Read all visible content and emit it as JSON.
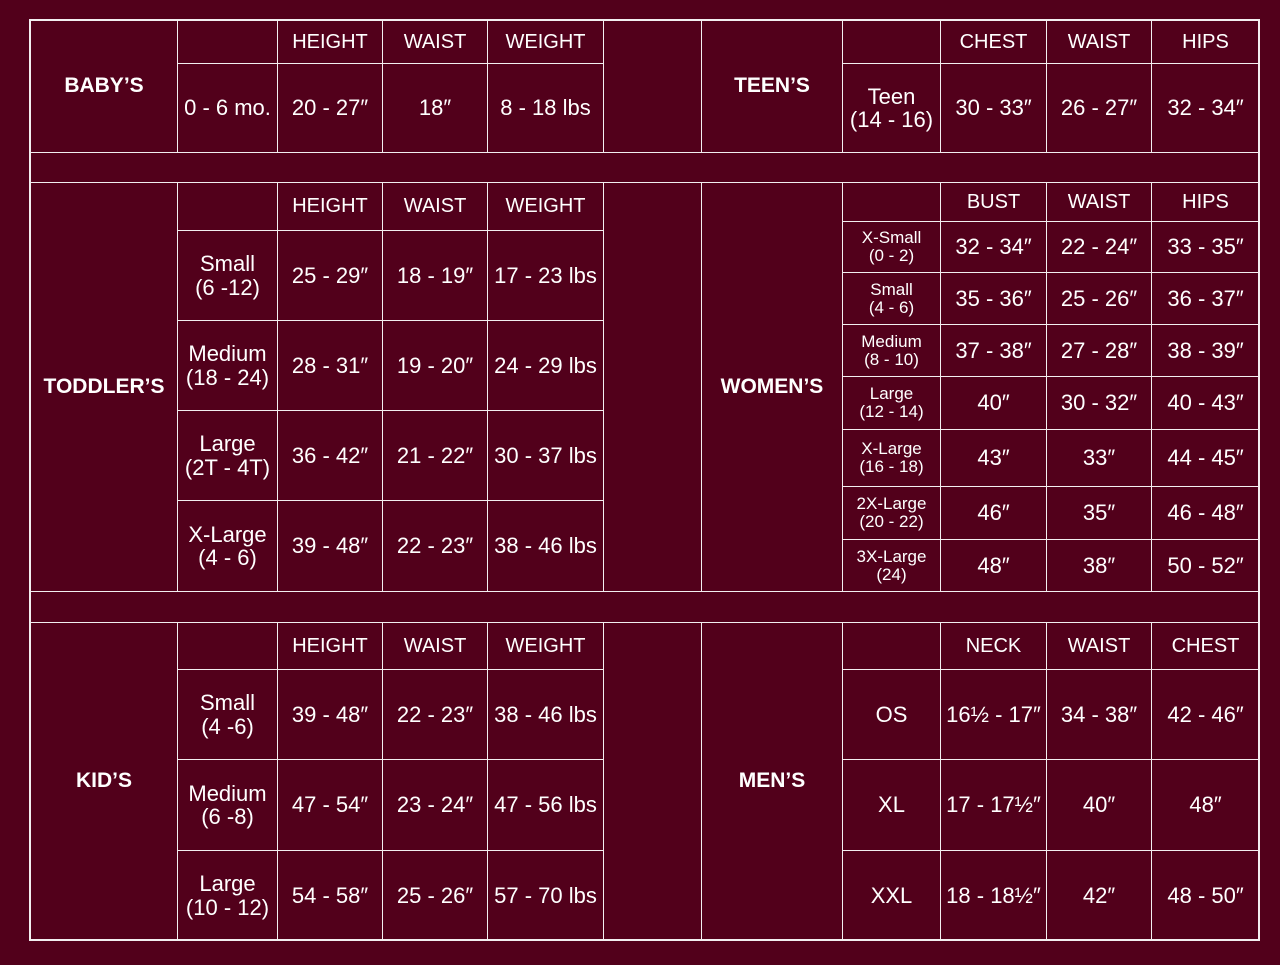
{
  "colors": {
    "background": "#52001b",
    "lines": "#f3eef0",
    "text": "#ffffff"
  },
  "sections": [
    {
      "left": {
        "label": "BABY’S",
        "headers": [
          "HEIGHT",
          "WAIST",
          "WEIGHT"
        ],
        "rows": [
          {
            "size": "0 - 6 mo.",
            "values": [
              "20 - 27″",
              "18″",
              "8 - 18 lbs"
            ]
          }
        ]
      },
      "right": {
        "label": "TEEN’S",
        "headers": [
          "CHEST",
          "WAIST",
          "HIPS"
        ],
        "rows": [
          {
            "size": "Teen\n(14 - 16)",
            "values": [
              "30 - 33″",
              "26 - 27″",
              "32 - 34″"
            ]
          }
        ]
      }
    },
    {
      "left": {
        "label": "TODDLER’S",
        "headers": [
          "HEIGHT",
          "WAIST",
          "WEIGHT"
        ],
        "rows": [
          {
            "size": "Small\n(6 -12)",
            "values": [
              "25 - 29″",
              "18 - 19″",
              "17 - 23 lbs"
            ]
          },
          {
            "size": "Medium\n(18 - 24)",
            "values": [
              "28 - 31″",
              "19 - 20″",
              "24 - 29 lbs"
            ]
          },
          {
            "size": "Large\n(2T - 4T)",
            "values": [
              "36 - 42″",
              "21 - 22″",
              "30 - 37 lbs"
            ]
          },
          {
            "size": "X-Large\n(4 - 6)",
            "values": [
              "39 - 48″",
              "22 - 23″",
              "38 - 46 lbs"
            ]
          }
        ]
      },
      "right": {
        "label": "WOMEN’S",
        "headers": [
          "BUST",
          "WAIST",
          "HIPS"
        ],
        "rows": [
          {
            "size": "X-Small\n(0 - 2)",
            "values": [
              "32 - 34″",
              "22 - 24″",
              "33 - 35″"
            ]
          },
          {
            "size": "Small\n(4 - 6)",
            "values": [
              "35 - 36″",
              "25 - 26″",
              "36 - 37″"
            ]
          },
          {
            "size": "Medium\n(8 - 10)",
            "values": [
              "37 - 38″",
              "27 - 28″",
              "38 - 39″"
            ]
          },
          {
            "size": "Large\n(12 - 14)",
            "values": [
              "40″",
              "30 - 32″",
              "40 - 43″"
            ]
          },
          {
            "size": "X-Large\n(16 - 18)",
            "values": [
              "43″",
              "33″",
              "44 - 45″"
            ]
          },
          {
            "size": "2X-Large\n(20 - 22)",
            "values": [
              "46″",
              "35″",
              "46 - 48″"
            ]
          },
          {
            "size": "3X-Large\n(24)",
            "values": [
              "48″",
              "38″",
              "50 - 52″"
            ]
          }
        ]
      }
    },
    {
      "left": {
        "label": "KID’S",
        "headers": [
          "HEIGHT",
          "WAIST",
          "WEIGHT"
        ],
        "rows": [
          {
            "size": "Small\n(4 -6)",
            "values": [
              "39 - 48″",
              "22 - 23″",
              "38 - 46 lbs"
            ]
          },
          {
            "size": "Medium\n(6 -8)",
            "values": [
              "47 - 54″",
              "23 - 24″",
              "47 - 56 lbs"
            ]
          },
          {
            "size": "Large\n(10 - 12)",
            "values": [
              "54 - 58″",
              "25 - 26″",
              "57 - 70 lbs"
            ]
          }
        ]
      },
      "right": {
        "label": "MEN’S",
        "headers": [
          "NECK",
          "WAIST",
          "CHEST"
        ],
        "rows": [
          {
            "size": "OS",
            "values": [
              "16½ - 17″",
              "34 - 38″",
              "42 - 46″"
            ]
          },
          {
            "size": "XL",
            "values": [
              "17 - 17½″",
              "40″",
              "48″"
            ]
          },
          {
            "size": "XXL",
            "values": [
              "18 - 18½″",
              "42″",
              "48 - 50″"
            ]
          }
        ]
      }
    }
  ]
}
